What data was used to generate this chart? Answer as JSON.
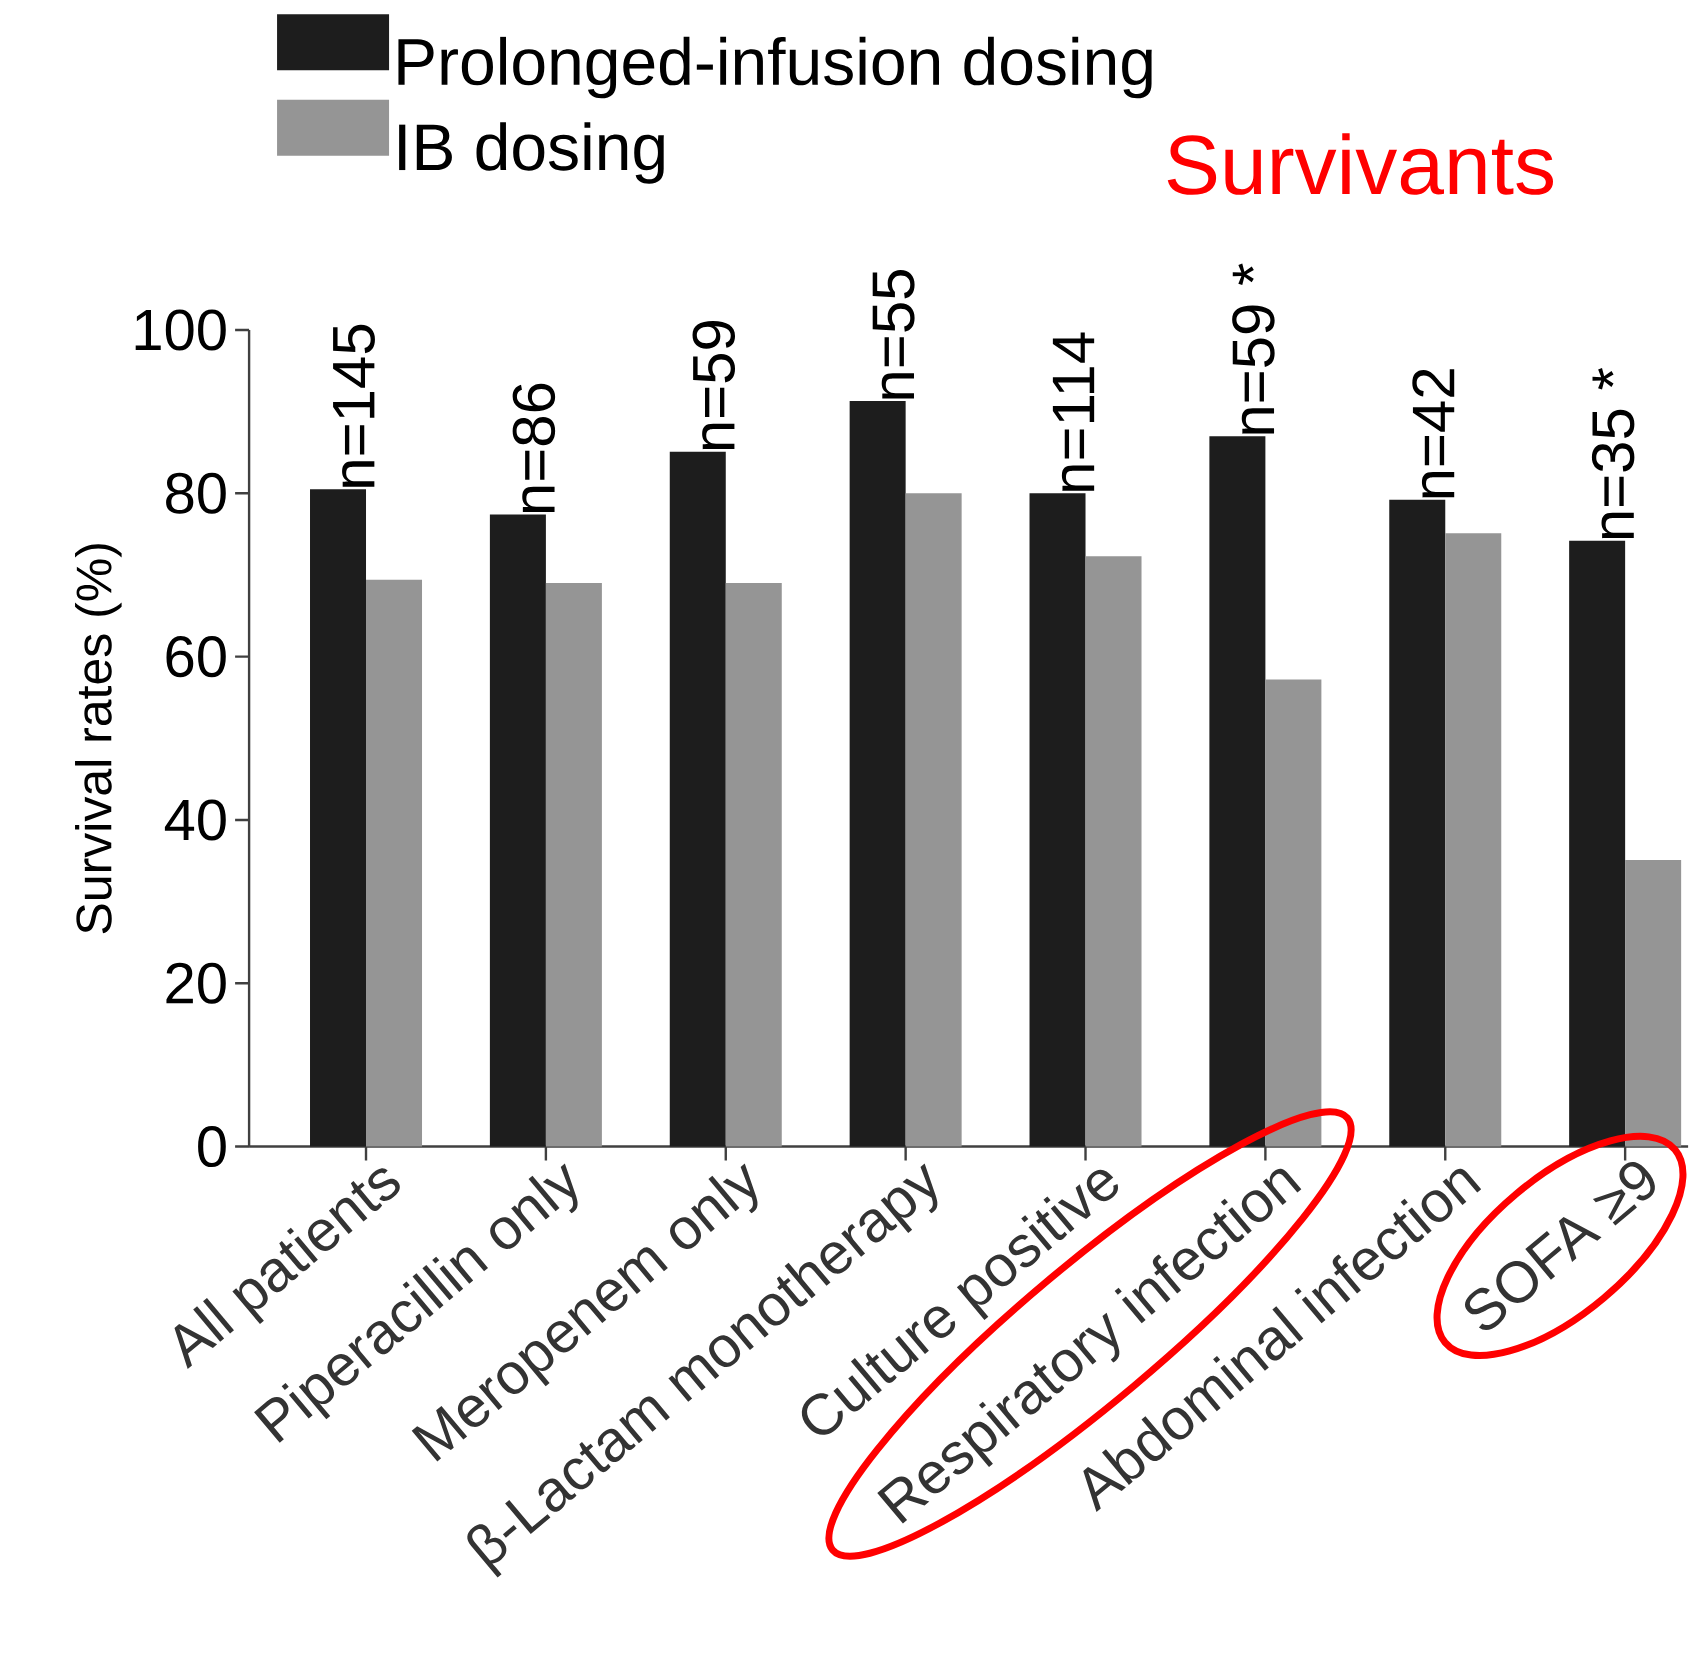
{
  "chart_data": {
    "type": "bar",
    "ylabel": "Survival rates (%)",
    "categories": [
      "All patients",
      "Piperacillin only",
      "Meropenem only",
      "β-Lactam monotherapy",
      "Culture positive",
      "Respiratory infection",
      "Abdominal infection",
      "SOFA ≥9"
    ],
    "series": [
      {
        "name": "Prolonged-infusion dosing",
        "color": "#1d1d1d",
        "values": [
          80.5,
          77.4,
          85.1,
          91.3,
          80,
          87,
          79.2,
          74.2
        ]
      },
      {
        "name": "IB dosing",
        "color": "#959595",
        "values": [
          69.4,
          69,
          69,
          80,
          72.3,
          57.2,
          75.1,
          35.1
        ]
      }
    ],
    "ylim": [
      0,
      100
    ],
    "yticks": [
      0,
      20,
      40,
      60,
      80,
      100
    ],
    "legend": "top left",
    "annotations": [
      {
        "text": "n=145",
        "x": "All patients",
        "y": 80.5
      },
      {
        "text": "n=86",
        "x": "Piperacillin only",
        "y": 77.4
      },
      {
        "text": "n=59",
        "x": "Meropenem only",
        "y": 85.1
      },
      {
        "text": "n=55",
        "x": "β-Lactam monotherapy",
        "y": 91.3
      },
      {
        "text": "n=114",
        "x": "Culture positive",
        "y": 80
      },
      {
        "text": "n=59 *",
        "x": "Respiratory infection",
        "y": 87
      },
      {
        "text": "n=42",
        "x": "Abdominal infection",
        "y": 79.2
      },
      {
        "text": "n=35 *",
        "x": "SOFA ≥9",
        "y": 74.2
      },
      "Survivants"
    ]
  }
}
